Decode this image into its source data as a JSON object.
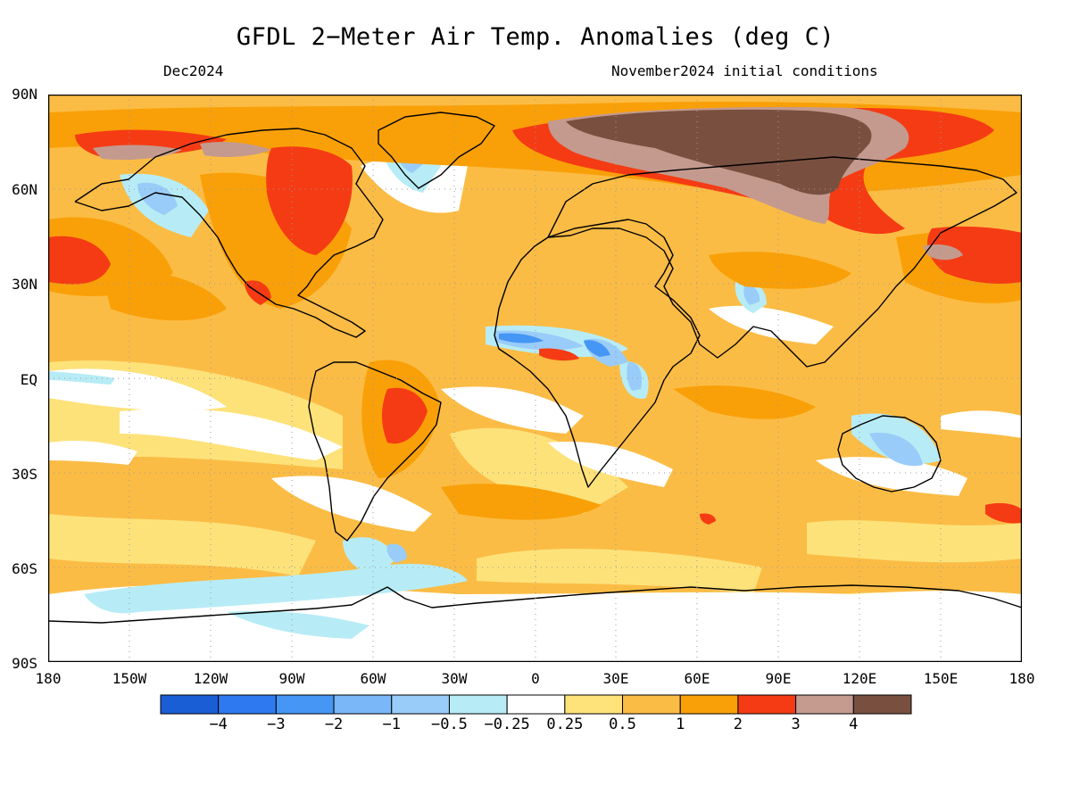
{
  "title": "GFDL 2−Meter Air Temp. Anomalies (deg C)",
  "valid_month": "Dec2024",
  "init_conditions": "November2024 initial conditions",
  "lat_labels": [
    "90N",
    "60N",
    "30N",
    "EQ",
    "30S",
    "60S",
    "90S"
  ],
  "lon_labels": [
    "180",
    "150W",
    "120W",
    "90W",
    "60W",
    "30W",
    "0",
    "30E",
    "60E",
    "90E",
    "120E",
    "150E",
    "180"
  ],
  "colorbar": {
    "colors": [
      "#1a5ed6",
      "#2f79f0",
      "#4596f5",
      "#79b7f8",
      "#99ccf8",
      "#b7ecf6",
      "#ffffff",
      "#fde27a",
      "#fbbc45",
      "#f9a008",
      "#f53b14",
      "#c49a8e",
      "#79503f"
    ],
    "labels": [
      "−4",
      "−3",
      "−2",
      "−1",
      "−0.5",
      "−0.25",
      "0.25",
      "0.5",
      "1",
      "2",
      "3",
      "4"
    ]
  },
  "palette": {
    "background_warm": "#fbbc45",
    "neutral": "#ffffff",
    "light_warm": "#fde27a",
    "orange": "#f9a008",
    "red": "#f53b14",
    "rose": "#c49a8e",
    "brown": "#79503f",
    "light_cool": "#b7ecf6",
    "cool": "#99ccf8",
    "blue": "#4596f5"
  }
}
